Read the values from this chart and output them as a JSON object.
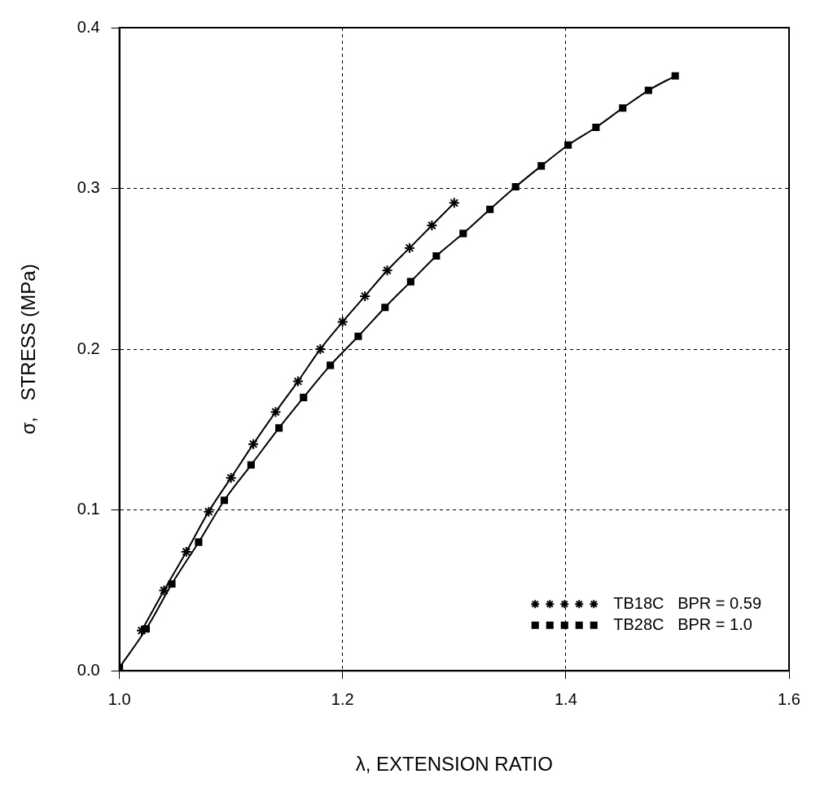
{
  "chart_data": {
    "type": "line",
    "xlabel": "λ, EXTENSION RATIO",
    "ylabel": "σ,   STRESS (MPa)",
    "xlim": [
      1.0,
      1.6
    ],
    "xticks": [
      {
        "value": 1.0,
        "label": "1.0"
      },
      {
        "value": 1.2,
        "label": "1.2"
      },
      {
        "value": 1.4,
        "label": "1.4"
      },
      {
        "value": 1.6,
        "label": "1.6"
      }
    ],
    "ylim": [
      0,
      0.4
    ],
    "yticks": [
      {
        "value": 0,
        "label": "0.0"
      },
      0.1,
      0.2,
      0.3,
      0.4
    ],
    "grid": true,
    "legend": "bottom right",
    "line_style": "solid",
    "series": [
      {
        "name": "TB18C   BPR = 0.59",
        "color": "#000000",
        "marker": "cross",
        "x": [
          1.02,
          1.04,
          1.06,
          1.08,
          1.1,
          1.12,
          1.14,
          1.16,
          1.18,
          1.2,
          1.22,
          1.24,
          1.26,
          1.28,
          1.3
        ],
        "values": [
          0.025,
          0.05,
          0.074,
          0.099,
          0.12,
          0.141,
          0.161,
          0.18,
          0.2,
          0.217,
          0.233,
          0.249,
          0.263,
          0.277,
          0.291
        ]
      },
      {
        "name": "TB28C   BPR = 1.0",
        "color": "#000000",
        "marker": "square",
        "x": [
          1.0,
          1.024,
          1.047,
          1.071,
          1.094,
          1.118,
          1.143,
          1.165,
          1.189,
          1.214,
          1.238,
          1.261,
          1.284,
          1.308,
          1.332,
          1.355,
          1.378,
          1.402,
          1.427,
          1.451,
          1.474,
          1.498
        ],
        "values": [
          0.002,
          0.026,
          0.054,
          0.08,
          0.106,
          0.128,
          0.151,
          0.17,
          0.19,
          0.208,
          0.226,
          0.242,
          0.258,
          0.272,
          0.287,
          0.301,
          0.314,
          0.327,
          0.338,
          0.35,
          0.361,
          0.37
        ]
      }
    ]
  }
}
